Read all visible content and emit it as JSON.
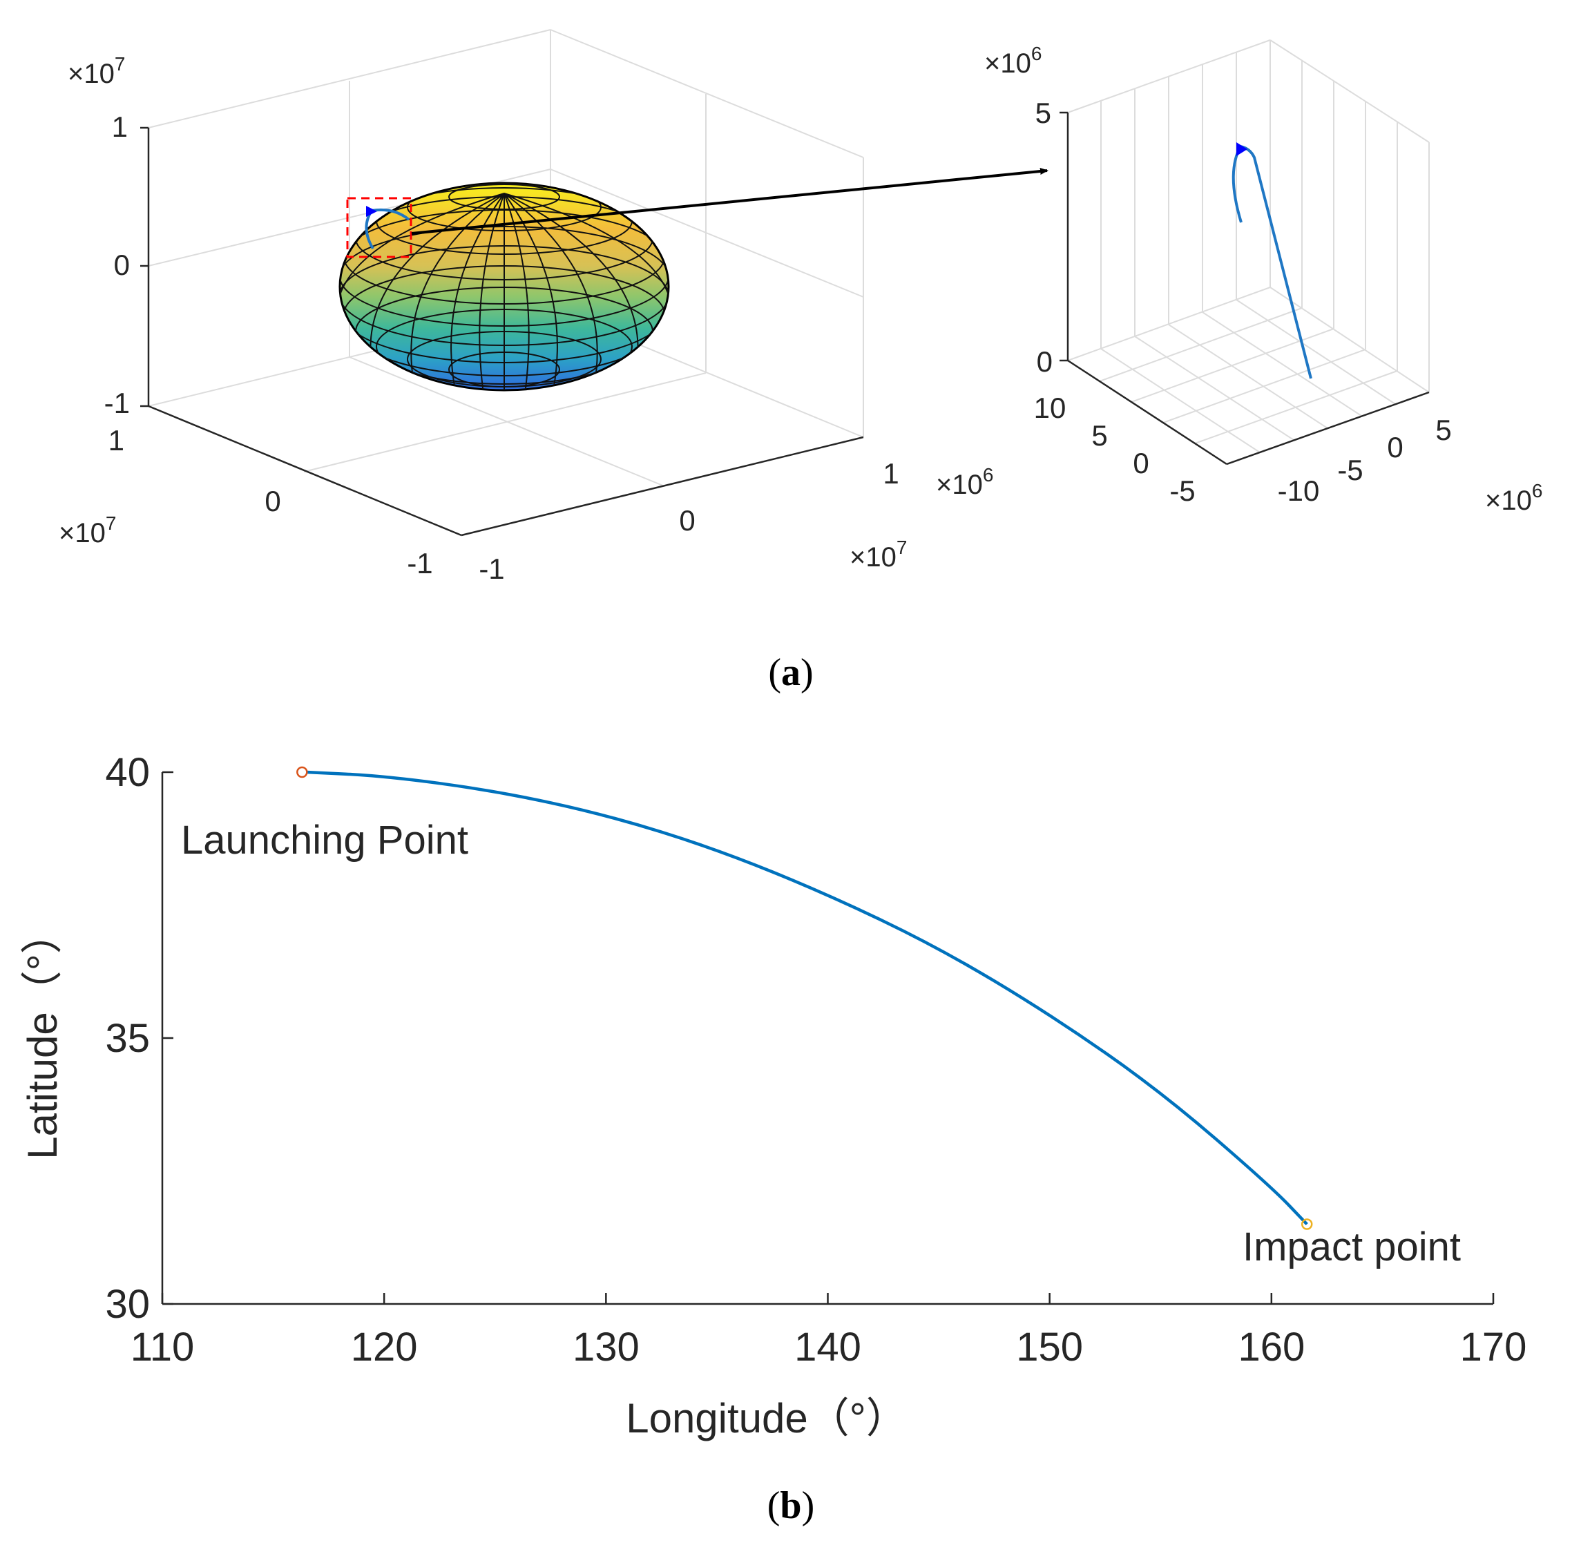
{
  "panel_a": {
    "caption": "(a)",
    "caption_letter": "a",
    "main_axes": {
      "z_multiplier": "×10",
      "z_multiplier_exp": "7",
      "z_ticks": [
        "1",
        "0",
        "-1"
      ],
      "y_multiplier": "×10",
      "y_multiplier_exp": "7",
      "y_ticks": [
        "1",
        "0",
        "-1"
      ],
      "x_multiplier": "×10",
      "x_multiplier_exp": "7",
      "x_ticks": [
        "-1",
        "0",
        "1"
      ],
      "side_multiplier": "×10",
      "side_multiplier_exp": "6"
    },
    "zoom_axes": {
      "z_multiplier": "×10",
      "z_multiplier_exp": "6",
      "z_ticks": [
        "5",
        "0"
      ],
      "left_ticks": [
        "10",
        "5",
        "0",
        "-5"
      ],
      "right_ticks": [
        "-10",
        "-5",
        "0",
        "5"
      ],
      "right_multiplier": "×10",
      "right_multiplier_exp": "6"
    },
    "colors": {
      "trajectory": "#1f77c4",
      "marker": "#0000ff",
      "zoom_box": "#ff0000",
      "arrow": "#000000"
    }
  },
  "panel_b": {
    "caption": "(b)",
    "caption_letter": "b",
    "chart_data": {
      "type": "line",
      "title": "",
      "xlabel": "Longitude（°）",
      "ylabel": "Latitude（°）",
      "xlim": [
        110,
        170
      ],
      "ylim": [
        30,
        40
      ],
      "x_ticks": [
        110,
        120,
        130,
        140,
        150,
        160,
        170
      ],
      "y_ticks": [
        30,
        35,
        40
      ],
      "series": [
        {
          "name": "trajectory",
          "color": "#0072bd",
          "x": [
            116.5,
            120,
            125,
            130,
            135,
            140,
            145,
            150,
            155,
            160,
            161.6
          ],
          "y": [
            40.0,
            39.93,
            39.65,
            39.2,
            38.55,
            37.7,
            36.7,
            35.45,
            34.0,
            32.2,
            31.5
          ]
        }
      ],
      "points": [
        {
          "name": "launch",
          "x": 116.3,
          "y": 40.0,
          "color": "#d95319"
        },
        {
          "name": "impact",
          "x": 161.6,
          "y": 31.5,
          "color": "#edb120"
        }
      ],
      "annotations": [
        {
          "name": "launch-label",
          "text": "Launching Point"
        },
        {
          "name": "impact-label",
          "text": "Impact point"
        }
      ]
    }
  }
}
